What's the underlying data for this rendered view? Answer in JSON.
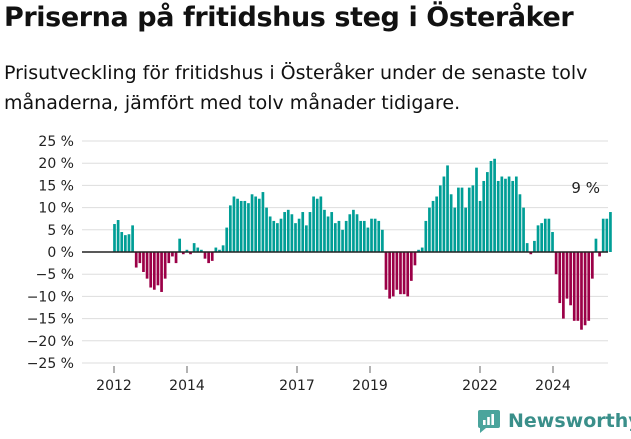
{
  "title": "Priserna på fritidshus steg i Österåker",
  "subtitle": "Prisutveckling för fritidshus i Österåker under de senaste tolv månaderna, jämfört med tolv månader tidigare.",
  "brand": "Newsworthy",
  "colors": {
    "positive": "#009e96",
    "negative": "#9b0047",
    "grid": "#dddddd",
    "axis": "#222222"
  },
  "chart_data": {
    "type": "bar",
    "title": "Priserna på fritidshus steg i Österåker",
    "ylim": [
      -25,
      25
    ],
    "ytick_labels": [
      "25 %",
      "20 %",
      "15 %",
      "10 %",
      "5 %",
      "0 %",
      "−5 %",
      "−10 %",
      "−15 %",
      "−20 %",
      "−25 %"
    ],
    "xtick_labels": [
      "2012",
      "2014",
      "2017",
      "2019",
      "2022",
      "2024"
    ],
    "grid": true,
    "annotation": "9 %",
    "series": [
      {
        "values": [
          6.3,
          7.2,
          4.5,
          3.8,
          4.0,
          6.0,
          -3.5,
          -2.5,
          -4.5,
          -6.0,
          -8.0,
          -8.5,
          -7.5,
          -9.0,
          -6.0,
          -2.5,
          -1.0,
          -2.5,
          3.0,
          -0.5,
          0.5,
          -0.5,
          2.0,
          1.0,
          0.5,
          -1.5,
          -2.5,
          -2.0,
          1.0,
          0.5,
          1.5,
          5.5,
          10.5,
          12.5,
          12.0,
          11.5,
          11.5,
          11.0,
          13.0,
          12.5,
          12.0,
          13.5,
          10.0,
          8.0,
          7.0,
          6.5,
          7.5,
          9.0,
          9.5,
          8.5,
          6.5,
          7.5,
          9.0,
          6.0,
          9.0,
          12.5,
          12.0,
          12.5,
          9.5,
          8.0,
          9.0,
          6.5,
          7.0,
          5.0,
          7.0,
          8.5,
          9.5,
          8.5,
          7.0,
          7.0,
          5.5,
          7.5,
          7.5,
          7.0,
          5.0,
          -8.5,
          -10.5,
          -10.0,
          -8.5,
          -9.5,
          -9.5,
          -10.0,
          -6.5,
          -3.0,
          0.5,
          1.0,
          7.0,
          10.0,
          11.5,
          12.5,
          15.0,
          17.0,
          19.5,
          13.0,
          10.0,
          14.5,
          14.5,
          10.0,
          14.5,
          15.0,
          19.0,
          11.5,
          16.0,
          18.0,
          20.5,
          21.0,
          16.0,
          17.0,
          16.5,
          17.0,
          16.0,
          17.0,
          13.0,
          10.0,
          2.0,
          -0.5,
          2.5,
          6.0,
          6.5,
          7.5,
          7.5,
          4.5,
          -5.0,
          -11.5,
          -15.0,
          -10.5,
          -12.0,
          -15.5,
          -15.5,
          -17.5,
          -16.5,
          -15.5,
          -6.0,
          3.0,
          -1.0,
          7.5,
          7.5,
          9.0
        ]
      }
    ]
  }
}
